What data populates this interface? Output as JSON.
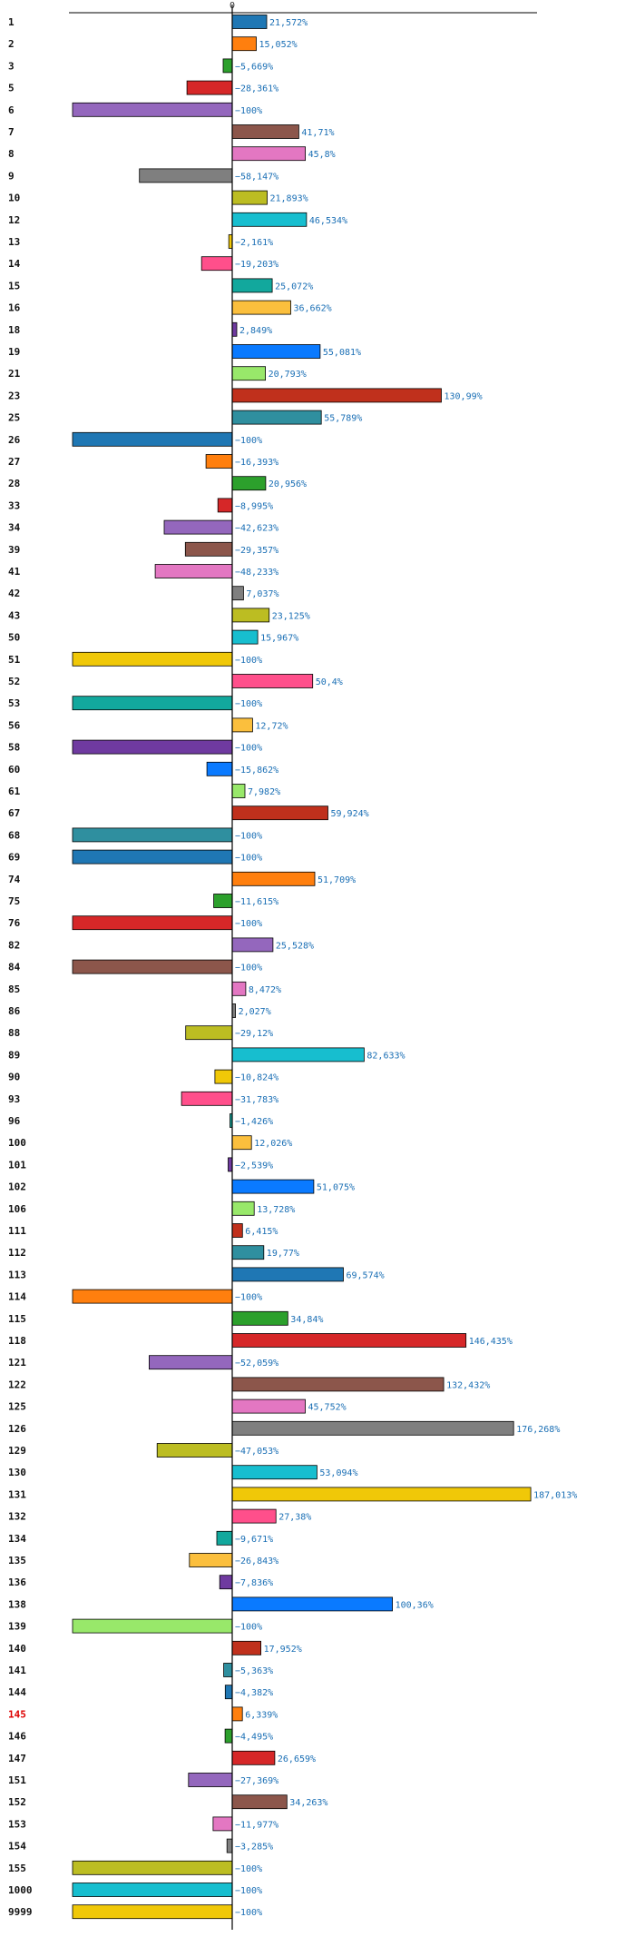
{
  "chart_data": {
    "type": "bar",
    "orientation": "horizontal",
    "x_tick_label": "0",
    "value_suffix": "%",
    "decimal_separator": ",",
    "highlighted_category": "145",
    "categories": [
      "1",
      "2",
      "3",
      "5",
      "6",
      "7",
      "8",
      "9",
      "10",
      "12",
      "13",
      "14",
      "15",
      "16",
      "18",
      "19",
      "21",
      "23",
      "25",
      "26",
      "27",
      "28",
      "33",
      "34",
      "39",
      "41",
      "42",
      "43",
      "50",
      "51",
      "52",
      "53",
      "56",
      "58",
      "60",
      "61",
      "67",
      "68",
      "69",
      "74",
      "75",
      "76",
      "82",
      "84",
      "85",
      "86",
      "88",
      "89",
      "90",
      "93",
      "96",
      "100",
      "101",
      "102",
      "106",
      "111",
      "112",
      "113",
      "114",
      "115",
      "118",
      "121",
      "122",
      "125",
      "126",
      "129",
      "130",
      "131",
      "132",
      "134",
      "135",
      "136",
      "138",
      "139",
      "140",
      "141",
      "144",
      "145",
      "146",
      "147",
      "151",
      "152",
      "153",
      "154",
      "155",
      "1000",
      "9999"
    ],
    "values": [
      21.572,
      15.052,
      -5.669,
      -28.361,
      -100,
      41.71,
      45.8,
      -58.147,
      21.893,
      46.534,
      -2.161,
      -19.203,
      25.072,
      36.662,
      2.849,
      55.081,
      20.793,
      130.99,
      55.789,
      -100,
      -16.393,
      20.956,
      -8.995,
      -42.623,
      -29.357,
      -48.233,
      7.037,
      23.125,
      15.967,
      -100,
      50.4,
      -100,
      12.72,
      -100,
      -15.862,
      7.982,
      59.924,
      -100,
      -100,
      51.709,
      -11.615,
      -100,
      25.528,
      -100,
      8.472,
      2.027,
      -29.12,
      82.633,
      -10.824,
      -31.783,
      -1.426,
      12.026,
      -2.539,
      51.075,
      13.728,
      6.415,
      19.77,
      69.574,
      -100,
      34.84,
      146.435,
      -52.059,
      132.432,
      45.752,
      176.268,
      -47.053,
      53.094,
      187.013,
      27.38,
      -9.671,
      -26.843,
      -7.836,
      100.36,
      -100,
      17.952,
      -5.363,
      -4.382,
      6.339,
      -4.495,
      26.659,
      -27.369,
      34.263,
      -11.977,
      -3.285,
      -100,
      -100,
      -100
    ],
    "palette": [
      "#1f77b4",
      "#ff7f0e",
      "#2ca02c",
      "#d62728",
      "#9467bd",
      "#8c564b",
      "#e377c2",
      "#7f7f7f",
      "#bcbd22",
      "#17becf",
      "#f0c808",
      "#ff4f8b",
      "#12a89d",
      "#fbbf3d",
      "#6f3aa0",
      "#0a7aff",
      "#98e86a",
      "#c0301c",
      "#2f8f9f"
    ],
    "highlight_color": "#dd0000",
    "value_label_color": "#1a6fb5"
  }
}
